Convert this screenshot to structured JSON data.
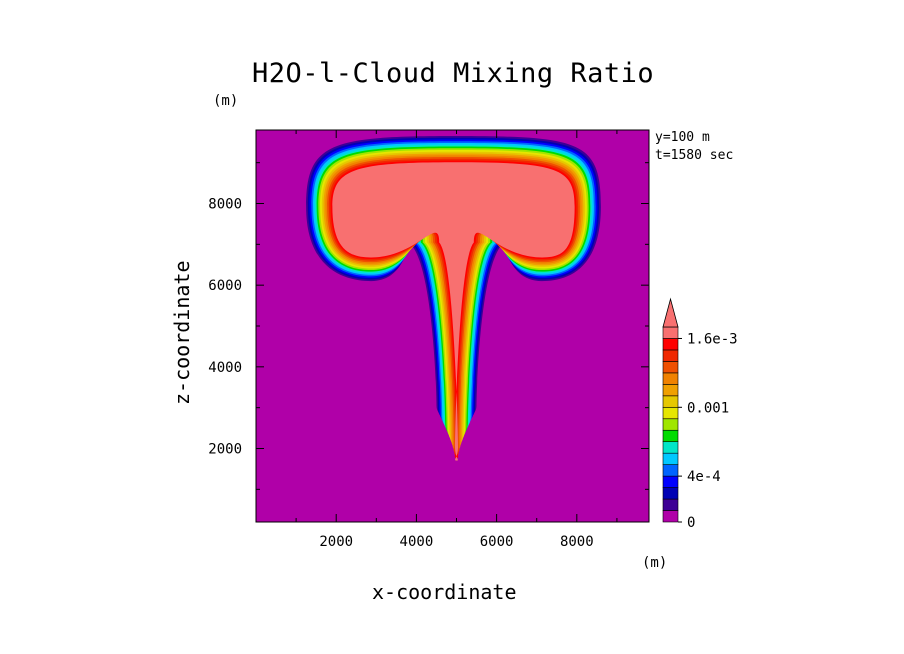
{
  "chart_data": {
    "type": "heatmap",
    "title": "H2O-l-Cloud Mixing Ratio",
    "xlabel": "x-coordinate",
    "ylabel": "z-coordinate",
    "x_unit": "(m)",
    "y_unit": "(m)",
    "xlim": [
      0,
      9800
    ],
    "ylim": [
      200,
      9800
    ],
    "xticks": [
      2000,
      4000,
      6000,
      8000
    ],
    "yticks": [
      2000,
      4000,
      6000,
      8000
    ],
    "annotations": [
      "y=100 m",
      "t=1580 sec"
    ],
    "grid": false,
    "legend": "colorbar-right",
    "colorbar": {
      "labels": [
        {
          "text": "0",
          "value": 0
        },
        {
          "text": "4e-4",
          "value": 0.0004
        },
        {
          "text": "0.001",
          "value": 0.001
        },
        {
          "text": "1.6e-3",
          "value": 0.0016
        }
      ],
      "levels": [
        0,
        0.0001,
        0.0002,
        0.0003,
        0.0004,
        0.0005,
        0.0006,
        0.0007,
        0.0008,
        0.0009,
        0.001,
        0.0011,
        0.0012,
        0.0013,
        0.0014,
        0.0015,
        0.0016,
        0.0017,
        0.0018,
        0.0019
      ],
      "colors": [
        "#b000a8",
        "#3d0095",
        "#0000b4",
        "#0000ff",
        "#0064ff",
        "#00c8ff",
        "#00e6c8",
        "#00dc00",
        "#a0e600",
        "#e6e600",
        "#e6c800",
        "#f0a000",
        "#f08200",
        "#f05000",
        "#f02800",
        "#ff0000",
        "#f87070"
      ],
      "extend": "max",
      "extend_color": "#f87070",
      "background_color": "#b000a8"
    },
    "plume": {
      "cap_top_z": 9750,
      "cap_bottom_z": 6100,
      "cap_x_range": [
        1250,
        8600
      ],
      "stem_x_center": 5000,
      "stem_bottom_z": 2700,
      "max_value_region": "cap top and stem core",
      "max_value": 0.0019
    }
  },
  "text": {
    "title": "H2O-l-Cloud Mixing Ratio",
    "unit_y": "(m)",
    "unit_x": "(m)",
    "xlabel": "x-coordinate",
    "ylabel": "z-coordinate",
    "info_y": "y=100 m",
    "info_t": "t=1580 sec"
  }
}
